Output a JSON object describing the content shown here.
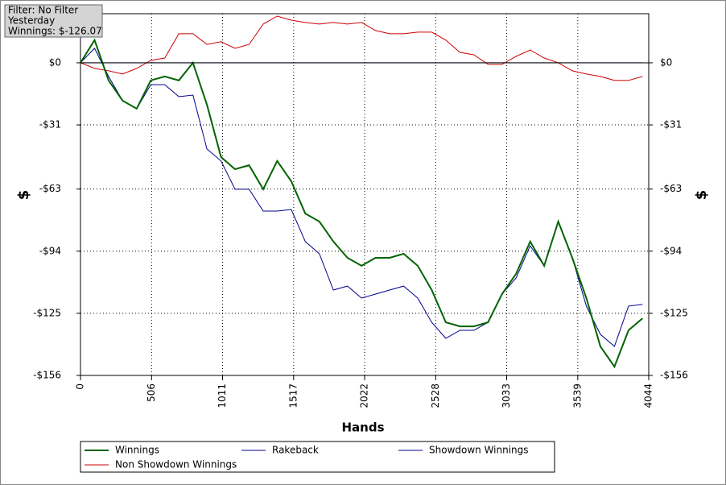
{
  "chart_data": {
    "type": "line",
    "info": [
      "Filter: No Filter",
      "Yesterday",
      "Winnings: $-126.07"
    ],
    "xlabel": "Hands",
    "ylabel": "$",
    "x": [
      0,
      100,
      200,
      300,
      400,
      500,
      600,
      700,
      800,
      900,
      1000,
      1100,
      1200,
      1300,
      1400,
      1500,
      1600,
      1700,
      1800,
      1900,
      2000,
      2100,
      2200,
      2300,
      2400,
      2500,
      2600,
      2700,
      2800,
      2900,
      3000,
      3100,
      3200,
      3300,
      3400,
      3500,
      3600,
      3700,
      3800,
      3900,
      4000
    ],
    "xlim": [
      0,
      4044
    ],
    "xticks": [
      0,
      506,
      1011,
      1517,
      2022,
      2528,
      3033,
      3539,
      4044
    ],
    "ylim": [
      -156,
      24.5
    ],
    "yticks": [
      {
        "value": 0,
        "label": "$0"
      },
      {
        "value": -31,
        "label": "-$31"
      },
      {
        "value": -63,
        "label": "-$63"
      },
      {
        "value": -94,
        "label": "-$94"
      },
      {
        "value": -125,
        "label": "-$125"
      },
      {
        "value": -156,
        "label": "-$156"
      }
    ],
    "grid": true,
    "series": [
      {
        "name": "Winnings",
        "color": "#006400",
        "values": [
          0,
          11.3,
          -8.8,
          -18.9,
          -22.9,
          -8.8,
          -6.8,
          -8.8,
          0,
          -20.9,
          -47.0,
          -53.1,
          -51.1,
          -63.1,
          -49.0,
          -59.1,
          -75.2,
          -79.2,
          -89.2,
          -97.3,
          -101.3,
          -97.3,
          -97.3,
          -95.3,
          -101.3,
          -113.4,
          -129.5,
          -131.5,
          -131.5,
          -129.5,
          -115.4,
          -105.3,
          -89.2,
          -101.3,
          -79.2,
          -97.3,
          -117.4,
          -141.5,
          -151.6,
          -133.5,
          -127.5
        ]
      },
      {
        "name": "Rakeback",
        "color": "#00008b",
        "values": [
          0,
          0,
          0,
          0,
          0,
          0,
          0,
          0,
          0,
          0,
          0,
          0,
          0,
          0,
          0,
          0,
          0,
          0,
          0,
          0,
          0,
          0,
          0,
          0,
          0,
          0,
          0,
          0,
          0,
          0,
          0,
          0,
          0,
          0,
          0,
          0,
          0,
          0,
          0,
          0,
          0
        ]
      },
      {
        "name": "Showdown Winnings",
        "color": "#00008b",
        "values": [
          0,
          7.2,
          -6.8,
          -18.9,
          -22.9,
          -10.9,
          -10.9,
          -16.9,
          -16.1,
          -43.0,
          -49.0,
          -63.1,
          -63.1,
          -74.0,
          -74.0,
          -73.2,
          -89.2,
          -95.3,
          -113.4,
          -111.4,
          -117.4,
          -115.4,
          -113.4,
          -111.4,
          -117.4,
          -129.5,
          -137.5,
          -133.5,
          -133.5,
          -129.5,
          -115.4,
          -107.4,
          -91.3,
          -101.3,
          -79.2,
          -97.3,
          -121.4,
          -135.5,
          -141.5,
          -121.4,
          -120.6
        ]
      },
      {
        "name": "Non Showdown Winnings",
        "color": "#cc0000",
        "values": [
          0,
          -2.8,
          -4.0,
          -5.6,
          -2.8,
          1.2,
          2.4,
          14.5,
          14.5,
          9.2,
          10.5,
          7.2,
          9.2,
          19.3,
          23.3,
          21.3,
          20.1,
          19.3,
          20.1,
          19.3,
          20.1,
          16.1,
          14.5,
          14.5,
          15.3,
          15.3,
          11.3,
          5.2,
          4.0,
          -0.8,
          -0.8,
          3.2,
          6.4,
          2.4,
          0,
          -4.0,
          -5.6,
          -6.8,
          -8.8,
          -8.8,
          -6.8
        ]
      }
    ]
  }
}
